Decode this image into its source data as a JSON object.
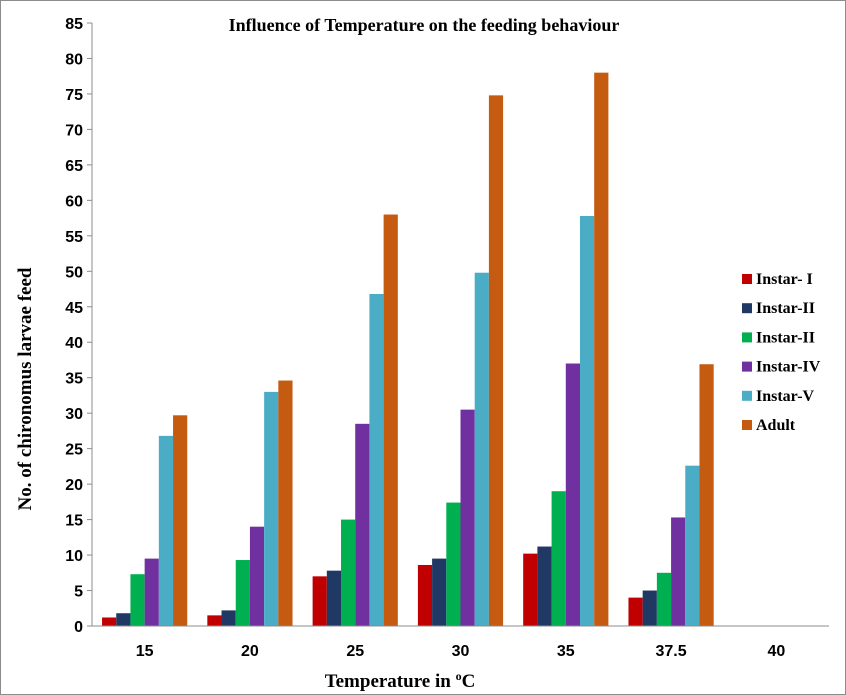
{
  "chart_data": {
    "type": "bar",
    "title": "Influence of Temperature on the feeding behaviour",
    "xlabel_main": "Temperature in ",
    "xlabel_sup": "o",
    "xlabel_unit": "C",
    "ylabel": "No. of chironomus larvae feed",
    "ylim": [
      0,
      85
    ],
    "yticks": [
      "0",
      "5",
      "10",
      "15",
      "20",
      "25",
      "30",
      "35",
      "40",
      "45",
      "50",
      "55",
      "60",
      "65",
      "70",
      "75",
      "80",
      "85"
    ],
    "categories": [
      "15",
      "20",
      "25",
      "30",
      "35",
      "37.5",
      "40"
    ],
    "grid": false,
    "legend_position": "right",
    "series": [
      {
        "name": "Instar- I",
        "color": "#c00000",
        "values": [
          1.2,
          1.5,
          7.0,
          8.6,
          10.2,
          4.0,
          0
        ]
      },
      {
        "name": "Instar-II",
        "color": "#1f3864",
        "values": [
          1.8,
          2.2,
          7.8,
          9.5,
          11.2,
          5.0,
          0
        ]
      },
      {
        "name": "Instar-II",
        "color": "#00b050",
        "values": [
          7.3,
          9.3,
          15.0,
          17.4,
          19.0,
          7.5,
          0
        ]
      },
      {
        "name": "Instar-IV",
        "color": "#7030a0",
        "values": [
          9.5,
          14.0,
          28.5,
          30.5,
          37.0,
          15.3,
          0
        ]
      },
      {
        "name": "Instar-V",
        "color": "#4bacc6",
        "values": [
          26.8,
          33.0,
          46.8,
          49.8,
          57.8,
          22.6,
          0
        ]
      },
      {
        "name": "Adult",
        "color": "#c55a11",
        "values": [
          29.7,
          34.6,
          58.0,
          74.8,
          78.0,
          36.9,
          0
        ]
      }
    ]
  }
}
